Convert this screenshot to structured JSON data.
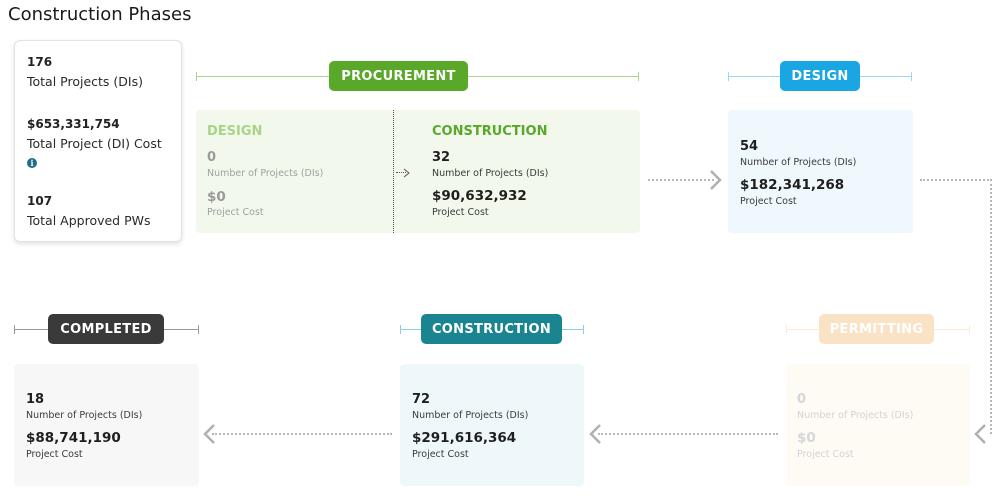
{
  "page_title": "Construction Phases",
  "summary": {
    "total_projects": "176",
    "total_projects_label": "Total Projects (DIs)",
    "total_cost": "$653,331,754",
    "total_cost_label": "Total Project (DI) Cost",
    "info_icon": "info-icon",
    "approved_pws": "107",
    "approved_pws_label": "Total Approved PWs"
  },
  "phases": {
    "procurement": {
      "label": "PROCUREMENT",
      "color": "#5aa82a",
      "design": {
        "title": "DESIGN",
        "count": "0",
        "count_label": "Number of Projects (DIs)",
        "cost": "$0",
        "cost_label": "Project Cost"
      },
      "construction": {
        "title": "CONSTRUCTION",
        "count": "32",
        "count_label": "Number of Projects (DIs)",
        "cost": "$90,632,932",
        "cost_label": "Project Cost"
      }
    },
    "design": {
      "label": "DESIGN",
      "color": "#1aa6e2",
      "count": "54",
      "count_label": "Number of Projects (DIs)",
      "cost": "$182,341,268",
      "cost_label": "Project Cost"
    },
    "permitting": {
      "label": "PERMITTING",
      "color": "#f6d7b0",
      "count": "0",
      "count_label": "Number of Projects (DIs)",
      "cost": "$0",
      "cost_label": "Project Cost"
    },
    "construction": {
      "label": "CONSTRUCTION",
      "color": "#1a8590",
      "count": "72",
      "count_label": "Number of Projects (DIs)",
      "cost": "$291,616,364",
      "cost_label": "Project Cost"
    },
    "completed": {
      "label": "COMPLETED",
      "color": "#3a3a3a",
      "count": "18",
      "count_label": "Number of Projects (DIs)",
      "cost": "$88,741,190",
      "cost_label": "Project Cost"
    }
  }
}
